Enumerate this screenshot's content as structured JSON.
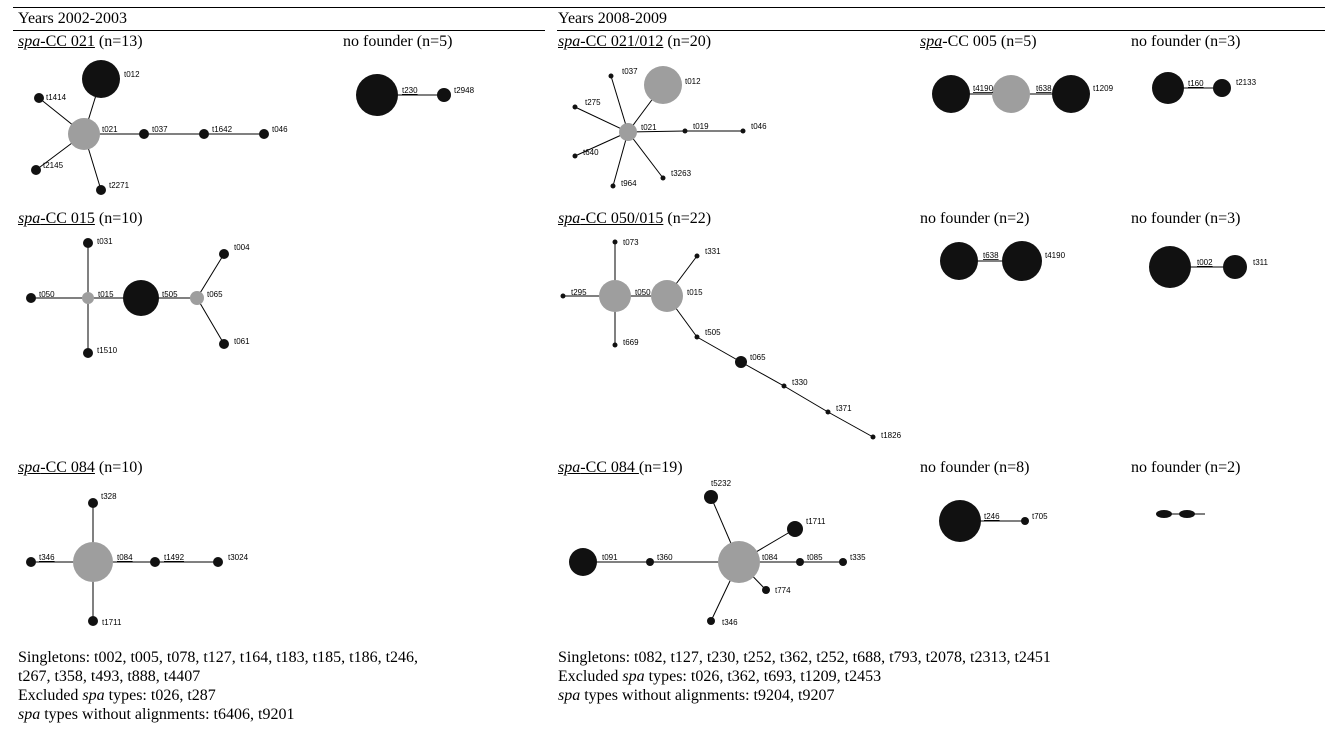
{
  "headers": {
    "left": "Years 2002-2003",
    "right": "Years 2008-2009"
  },
  "panels": {
    "cc021": {
      "prefix": "spa",
      "title": "-CC 021",
      "count": " (n=13)"
    },
    "nf5": {
      "title": "no founder (n=5)"
    },
    "cc021_012": {
      "prefix": "spa",
      "title": "-CC 021/012",
      "count": " (n=20)"
    },
    "cc005": {
      "prefix": "spa",
      "title": "-CC 005 (n=5)"
    },
    "nf3a": {
      "title": "no founder (n=3)"
    },
    "cc015": {
      "prefix": "spa",
      "title": "-CC 015",
      "count": " (n=10)"
    },
    "cc050_015": {
      "prefix": "spa",
      "title": "-CC 050/015",
      "count": " (n=22)"
    },
    "nf2a": {
      "title": "no founder (n=2)"
    },
    "nf3b": {
      "title": "no founder (n=3)"
    },
    "cc084a": {
      "prefix": "spa",
      "title": "-CC 084",
      "count": " (n=10)"
    },
    "cc084b": {
      "prefix": "spa",
      "title": "-CC 084 ",
      "count": "(n=19)"
    },
    "nf8": {
      "title": "no founder (n=8)"
    },
    "nf2b": {
      "title": "no founder (n=2)"
    }
  },
  "nodes": {
    "t012": "t012",
    "t1414": "t1414",
    "t021": "t021",
    "t037": "t037",
    "t1642": "t1642",
    "t046": "t046",
    "t2145": "t2145",
    "t2271": "t2271",
    "t230": "t230",
    "t2948": "t2948",
    "t275": "t275",
    "t019": "t019",
    "t640": "t640",
    "t964": "t964",
    "t3263": "t3263",
    "t4190": "t4190",
    "t638": "t638",
    "t1209": "t1209",
    "t160": "t160",
    "t2133": "t2133",
    "t031": "t031",
    "t004": "t004",
    "t050": "t050",
    "t015": "t015",
    "t505": "t505",
    "t065": "t065",
    "t1510": "t1510",
    "t061": "t061",
    "t073": "t073",
    "t331": "t331",
    "t295": "t295",
    "t669": "t669",
    "t330": "t330",
    "t371": "t371",
    "t1826": "t1826",
    "t002": "t002",
    "t311": "t311",
    "t328": "t328",
    "t346": "t346",
    "t084": "t084",
    "t1492": "t1492",
    "t3024": "t3024",
    "t1711": "t1711",
    "t5232": "t5232",
    "t091": "t091",
    "t360": "t360",
    "t085": "t085",
    "t335": "t335",
    "t774": "t774",
    "t246": "t246",
    "t705": "t705"
  },
  "footer_left": {
    "singletons_1": "Singletons: t002, t005, t078, t127, t164, t183, t185, t186, t246,",
    "singletons_2": "t267, t358, t493, t888, t4407",
    "excluded_pre": "Excluded ",
    "excluded_it": "spa",
    "excluded_post": " types: t026, t287",
    "noalign_it": "spa",
    "noalign_post": " types without alignments: t6406, t9201"
  },
  "footer_right": {
    "singletons_1": "Singletons: t082, t127, t230, t252, t362, t252, t688, t793, t2078, t2313, t2451",
    "excluded_pre": "Excluded ",
    "excluded_it": "spa",
    "excluded_post": " types: t026, t362, t693, t1209, t2453",
    "noalign_it": "spa",
    "noalign_post": " types without alignments: t9204, t9207"
  },
  "colors": {
    "node_dark": "#111111",
    "node_founder_grey": "#9e9e9e",
    "edge": "#000000"
  }
}
